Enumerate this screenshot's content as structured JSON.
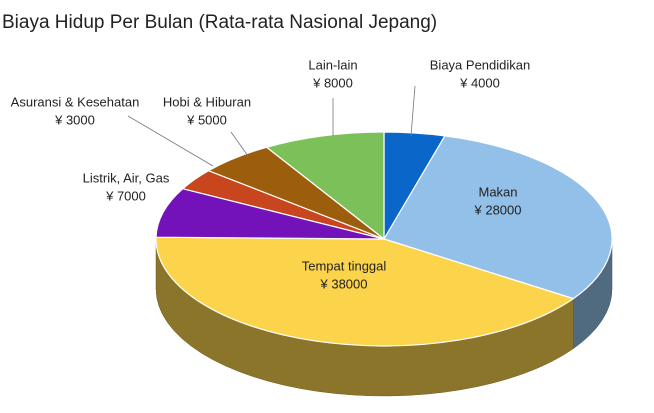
{
  "chart_data": {
    "type": "pie",
    "title": "Biaya Hidup Per Bulan (Rata-rata Nasional Jepang)",
    "categories": [
      "Biaya Pendidikan",
      "Makan",
      "Tempat tinggal",
      "Listrik, Air, Gas",
      "Asuransi & Kesehatan",
      "Hobi & Hiburan",
      "Lain-lain"
    ],
    "values": [
      4000,
      28000,
      38000,
      7000,
      3000,
      5000,
      8000
    ],
    "value_labels": [
      "¥ 4000",
      "¥ 28000",
      "¥ 38000",
      "¥ 7000",
      "¥ 3000",
      "¥ 5000",
      "¥ 8000"
    ],
    "colors": [
      "#0a66c8",
      "#92c0e8",
      "#fcd44c",
      "#7312b8",
      "#c8461e",
      "#9c5d0c",
      "#7cc05a"
    ]
  }
}
